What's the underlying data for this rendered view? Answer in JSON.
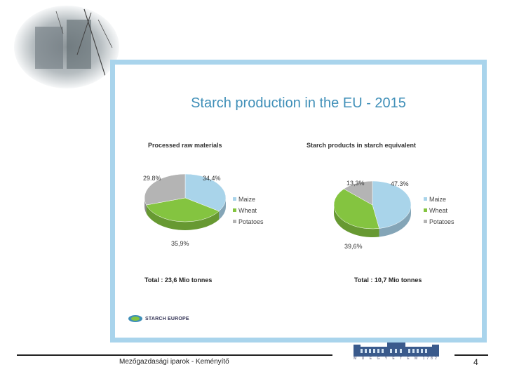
{
  "slide": {
    "title": "Starch production in the EU - 2015",
    "logo_text": "STARCH EUROPE"
  },
  "footer": {
    "text": "Mezőgazdasági iparok - Keményítő",
    "page_number": "4",
    "building_caption": "M Ű E G Y E T E M 1782"
  },
  "colors": {
    "maize": "#a9d4ea",
    "wheat": "#84c440",
    "potatoes": "#b4b4b4",
    "frame": "#a9d4ec",
    "title": "#3f8fb8"
  },
  "chart_data": [
    {
      "type": "pie",
      "title": "Processed raw materials",
      "legend": [
        "Maize",
        "Wheat",
        "Potatoes"
      ],
      "slices": [
        {
          "name": "Maize",
          "label": "34,4%",
          "value": 34.4
        },
        {
          "name": "Wheat",
          "label": "35,9%",
          "value": 35.9
        },
        {
          "name": "Potatoes",
          "label": "29.8%",
          "value": 29.8
        }
      ],
      "total_prefix": "Total : ",
      "total_value": "23,6 Mio tonnes",
      "legend_placement": "right"
    },
    {
      "type": "pie",
      "title": "Starch products in starch equivalent",
      "legend": [
        "Maize",
        "Wheat",
        "Potatoes"
      ],
      "slices": [
        {
          "name": "Maize",
          "label": "47.3%",
          "value": 47.3
        },
        {
          "name": "Wheat",
          "label": "39,6%",
          "value": 39.6
        },
        {
          "name": "Potatoes",
          "label": "13,3%",
          "value": 13.3
        }
      ],
      "total_prefix": "Total : ",
      "total_value": "10,7 Mio tonnes",
      "legend_placement": "right"
    }
  ]
}
